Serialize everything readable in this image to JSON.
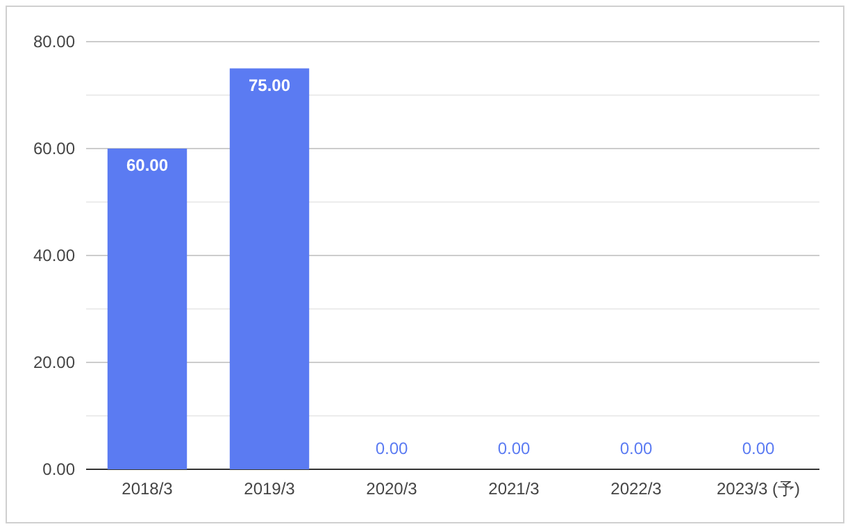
{
  "chart_data": {
    "type": "bar",
    "categories": [
      "2018/3",
      "2019/3",
      "2020/3",
      "2021/3",
      "2022/3",
      "2023/3 (予)"
    ],
    "values": [
      60,
      75,
      0,
      0,
      0,
      0
    ],
    "color": "#5b7bf2",
    "value_labels": [
      "60.00",
      "75.00",
      "0.00",
      "0.00",
      "0.00",
      "0.00"
    ],
    "ylim": [
      0,
      80
    ],
    "yticks": [
      {
        "value": 0,
        "label": "0.00"
      },
      {
        "value": 10,
        "label": null
      },
      {
        "value": 20,
        "label": "20.00"
      },
      {
        "value": 30,
        "label": null
      },
      {
        "value": 40,
        "label": "40.00"
      },
      {
        "value": 50,
        "label": null
      },
      {
        "value": 60,
        "label": "60.00"
      },
      {
        "value": 70,
        "label": null
      },
      {
        "value": 80,
        "label": "80.00"
      }
    ],
    "grid": "y"
  }
}
